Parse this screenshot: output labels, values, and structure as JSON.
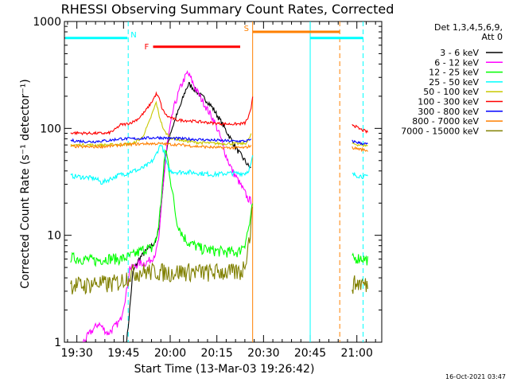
{
  "title": "RHESSI Observing Summary Count Rates, Corrected",
  "xlabel": "Start Time (13-Mar-03 19:26:42)",
  "ylabel": "Corrected Count Rate (s⁻¹ detector⁻¹)",
  "footer_date": "16-Oct-2021 03:47",
  "legend": {
    "header_line1": "Det 1,3,4,5,6,9,",
    "header_line2": "Att 0"
  },
  "chart_data": {
    "type": "line",
    "title": "RHESSI Observing Summary Count Rates, Corrected",
    "xlabel": "Start Time (13-Mar-03 19:26:42)",
    "ylabel": "Corrected Count Rate (s⁻¹ detector⁻¹)",
    "yscale": "log",
    "ylim": [
      1,
      1000
    ],
    "xlim_minutes": [
      -4,
      98
    ],
    "x_unit": "minutes after 19:30",
    "x_ticks": [
      {
        "t": 0,
        "label": "19:30"
      },
      {
        "t": 15,
        "label": "19:45"
      },
      {
        "t": 30,
        "label": "20:00"
      },
      {
        "t": 45,
        "label": "20:15"
      },
      {
        "t": 60,
        "label": "20:30"
      },
      {
        "t": 75,
        "label": "20:45"
      },
      {
        "t": 90,
        "label": "21:00"
      }
    ],
    "y_ticks": [
      {
        "v": 1,
        "label": "1"
      },
      {
        "v": 10,
        "label": "10"
      },
      {
        "v": 100,
        "label": "100"
      },
      {
        "v": 1000,
        "label": "1000"
      }
    ],
    "data_gap_minutes": [
      56.5,
      88.0
    ],
    "annotations": {
      "night": {
        "label": "N",
        "color": "#00ffff",
        "start": 16.5,
        "end": 75.0,
        "level": 700
      },
      "flare": {
        "label": "F",
        "color": "#ff0000",
        "start": 24.5,
        "end": 52.5,
        "level": 580
      },
      "saa": {
        "label": "S",
        "color": "#ff8000",
        "start": 56.5,
        "end": 84.5,
        "level": 800
      },
      "night_lines": [
        {
          "t": 16.5,
          "style": "dashed"
        },
        {
          "t": 75.0,
          "style": "solid"
        },
        {
          "t": 92.0,
          "style": "dashed"
        }
      ],
      "saa_lines": [
        {
          "t": 56.5,
          "style": "solid"
        },
        {
          "t": 84.5,
          "style": "dashed"
        }
      ]
    },
    "series": [
      {
        "name": "3 - 6 keV",
        "color": "#000000",
        "points": [
          [
            16,
            1.0
          ],
          [
            16.6,
            1.5
          ],
          [
            18,
            4.5
          ],
          [
            20,
            6
          ],
          [
            22,
            7
          ],
          [
            24,
            8
          ],
          [
            25.5,
            9
          ],
          [
            26.5,
            12
          ],
          [
            27.5,
            25
          ],
          [
            28.5,
            55
          ],
          [
            30,
            90
          ],
          [
            32,
            130
          ],
          [
            33.5,
            170
          ],
          [
            35,
            230
          ],
          [
            36,
            260
          ],
          [
            37,
            245
          ],
          [
            38,
            230
          ],
          [
            40,
            200
          ],
          [
            42,
            180
          ],
          [
            44,
            150
          ],
          [
            46,
            120
          ],
          [
            48,
            95
          ],
          [
            50,
            75
          ],
          [
            52,
            60
          ],
          [
            54,
            50
          ],
          [
            55,
            45
          ],
          [
            56,
            42
          ]
        ],
        "points_after_gap": []
      },
      {
        "name": "6 - 12 keV",
        "color": "#ff00ff",
        "points": [
          [
            2,
            1.0
          ],
          [
            4,
            1.2
          ],
          [
            7,
            1.5
          ],
          [
            10,
            1.2
          ],
          [
            14,
            1.6
          ],
          [
            16,
            3
          ],
          [
            17,
            5
          ],
          [
            18,
            5
          ],
          [
            20,
            5.5
          ],
          [
            22,
            5.5
          ],
          [
            24,
            6
          ],
          [
            25.5,
            7
          ],
          [
            26.5,
            10
          ],
          [
            27.5,
            25
          ],
          [
            29,
            70
          ],
          [
            31,
            150
          ],
          [
            33,
            230
          ],
          [
            34.5,
            290
          ],
          [
            35.5,
            330
          ],
          [
            36.5,
            300
          ],
          [
            38,
            240
          ],
          [
            40,
            190
          ],
          [
            42,
            150
          ],
          [
            44,
            120
          ],
          [
            46,
            85
          ],
          [
            48,
            55
          ],
          [
            50,
            40
          ],
          [
            52,
            32
          ],
          [
            54,
            25
          ],
          [
            55,
            22
          ],
          [
            56,
            21
          ]
        ],
        "points_after_gap": []
      },
      {
        "name": "12 - 25 keV",
        "color": "#00ff00",
        "points": [
          [
            -2,
            6.2
          ],
          [
            2,
            6.0
          ],
          [
            6,
            5.8
          ],
          [
            10,
            6.1
          ],
          [
            14,
            6.0
          ],
          [
            16,
            6.2
          ],
          [
            18,
            6.5
          ],
          [
            20,
            7
          ],
          [
            22,
            7.5
          ],
          [
            24,
            7.5
          ],
          [
            25.5,
            9
          ],
          [
            26.5,
            14
          ],
          [
            27.5,
            30
          ],
          [
            28.5,
            65
          ],
          [
            29.5,
            45
          ],
          [
            31,
            22
          ],
          [
            32,
            14
          ],
          [
            34,
            10
          ],
          [
            36,
            8.5
          ],
          [
            38,
            8
          ],
          [
            40,
            7.5
          ],
          [
            44,
            7.2
          ],
          [
            48,
            7.0
          ],
          [
            52,
            7.0
          ],
          [
            54,
            8.5
          ],
          [
            55,
            11
          ],
          [
            56,
            15
          ],
          [
            56.5,
            20
          ]
        ],
        "points_after_gap": [
          [
            88.5,
            6.0
          ],
          [
            91,
            6.2
          ],
          [
            93.5,
            5.9
          ]
        ]
      },
      {
        "name": "25 - 50 keV",
        "color": "#00ffff",
        "points": [
          [
            -2,
            36
          ],
          [
            2,
            35
          ],
          [
            6,
            34
          ],
          [
            8,
            31
          ],
          [
            10,
            33
          ],
          [
            12,
            35
          ],
          [
            14,
            37
          ],
          [
            16,
            38
          ],
          [
            18,
            40
          ],
          [
            20,
            41
          ],
          [
            22,
            44
          ],
          [
            23.5,
            47
          ],
          [
            25,
            53
          ],
          [
            26,
            62
          ],
          [
            27,
            72
          ],
          [
            28,
            60
          ],
          [
            29,
            45
          ],
          [
            30,
            40
          ],
          [
            32,
            39
          ],
          [
            36,
            39
          ],
          [
            40,
            38
          ],
          [
            44,
            37
          ],
          [
            48,
            38
          ],
          [
            52,
            38
          ],
          [
            54,
            38
          ],
          [
            55,
            40
          ],
          [
            56,
            46
          ],
          [
            56.5,
            55
          ]
        ],
        "points_after_gap": [
          [
            88.5,
            37
          ],
          [
            91,
            36
          ],
          [
            93.5,
            35
          ]
        ]
      },
      {
        "name": "50 - 100 keV",
        "color": "#c8c800",
        "points": [
          [
            -2,
            70
          ],
          [
            4,
            70
          ],
          [
            10,
            70
          ],
          [
            14,
            71
          ],
          [
            18,
            72
          ],
          [
            21,
            82
          ],
          [
            23,
            110
          ],
          [
            24.5,
            145
          ],
          [
            25.5,
            175
          ],
          [
            26.5,
            130
          ],
          [
            28,
            95
          ],
          [
            30,
            82
          ],
          [
            34,
            77
          ],
          [
            38,
            74
          ],
          [
            42,
            73
          ],
          [
            46,
            72
          ],
          [
            50,
            72
          ],
          [
            54,
            72
          ],
          [
            55,
            76
          ],
          [
            56,
            88
          ]
        ],
        "points_after_gap": [
          [
            88.5,
            72
          ],
          [
            91,
            70
          ],
          [
            93.5,
            69
          ]
        ]
      },
      {
        "name": "100 - 300 keV",
        "color": "#ff0000",
        "points": [
          [
            -2,
            91
          ],
          [
            4,
            90
          ],
          [
            10,
            90
          ],
          [
            12,
            96
          ],
          [
            14,
            108
          ],
          [
            16,
            110
          ],
          [
            18,
            115
          ],
          [
            20,
            125
          ],
          [
            22,
            145
          ],
          [
            24,
            175
          ],
          [
            25.5,
            210
          ],
          [
            26.5,
            190
          ],
          [
            27.5,
            150
          ],
          [
            29,
            130
          ],
          [
            32,
            120
          ],
          [
            36,
            118
          ],
          [
            40,
            115
          ],
          [
            44,
            112
          ],
          [
            48,
            110
          ],
          [
            52,
            110
          ],
          [
            54,
            112
          ],
          [
            55,
            125
          ],
          [
            56,
            150
          ],
          [
            56.5,
            200
          ]
        ],
        "points_after_gap": [
          [
            88.5,
            110
          ],
          [
            90.5,
            100
          ],
          [
            93.5,
            92
          ]
        ]
      },
      {
        "name": "300 - 800 keV",
        "color": "#0000ff",
        "points": [
          [
            -2,
            77
          ],
          [
            4,
            75
          ],
          [
            10,
            77
          ],
          [
            14,
            80
          ],
          [
            18,
            80
          ],
          [
            22,
            81
          ],
          [
            26,
            82
          ],
          [
            30,
            81
          ],
          [
            34,
            80
          ],
          [
            38,
            79
          ],
          [
            42,
            78
          ],
          [
            46,
            77
          ],
          [
            50,
            76
          ],
          [
            54,
            76
          ],
          [
            56,
            78
          ]
        ],
        "points_after_gap": [
          [
            88.5,
            76
          ],
          [
            91,
            73
          ],
          [
            93.5,
            71
          ]
        ]
      },
      {
        "name": "800 - 7000 keV",
        "color": "#ff8000",
        "points": [
          [
            -2,
            68
          ],
          [
            4,
            67
          ],
          [
            10,
            68
          ],
          [
            14,
            70
          ],
          [
            18,
            71
          ],
          [
            22,
            72
          ],
          [
            26,
            72
          ],
          [
            30,
            71
          ],
          [
            34,
            70
          ],
          [
            38,
            68
          ],
          [
            42,
            67
          ],
          [
            46,
            66
          ],
          [
            50,
            66
          ],
          [
            54,
            66
          ],
          [
            56,
            69
          ]
        ],
        "points_after_gap": [
          [
            88.5,
            66
          ],
          [
            91,
            64
          ],
          [
            93.5,
            62
          ]
        ]
      },
      {
        "name": "7000 - 15000 keV",
        "color": "#808000",
        "points": [
          [
            -2,
            3.5
          ],
          [
            2,
            3.4
          ],
          [
            6,
            3.6
          ],
          [
            10,
            3.5
          ],
          [
            14,
            3.7
          ],
          [
            18,
            4.5
          ],
          [
            22,
            4.6
          ],
          [
            26,
            4.6
          ],
          [
            30,
            4.5
          ],
          [
            34,
            4.6
          ],
          [
            38,
            4.6
          ],
          [
            42,
            4.5
          ],
          [
            46,
            4.6
          ],
          [
            50,
            4.5
          ],
          [
            53,
            4.6
          ],
          [
            54,
            5.5
          ],
          [
            55,
            8
          ],
          [
            56,
            12
          ],
          [
            56.5,
            20
          ]
        ],
        "points_after_gap": [
          [
            88.5,
            3.5
          ],
          [
            91,
            3.6
          ],
          [
            93.5,
            3.4
          ]
        ]
      }
    ]
  }
}
